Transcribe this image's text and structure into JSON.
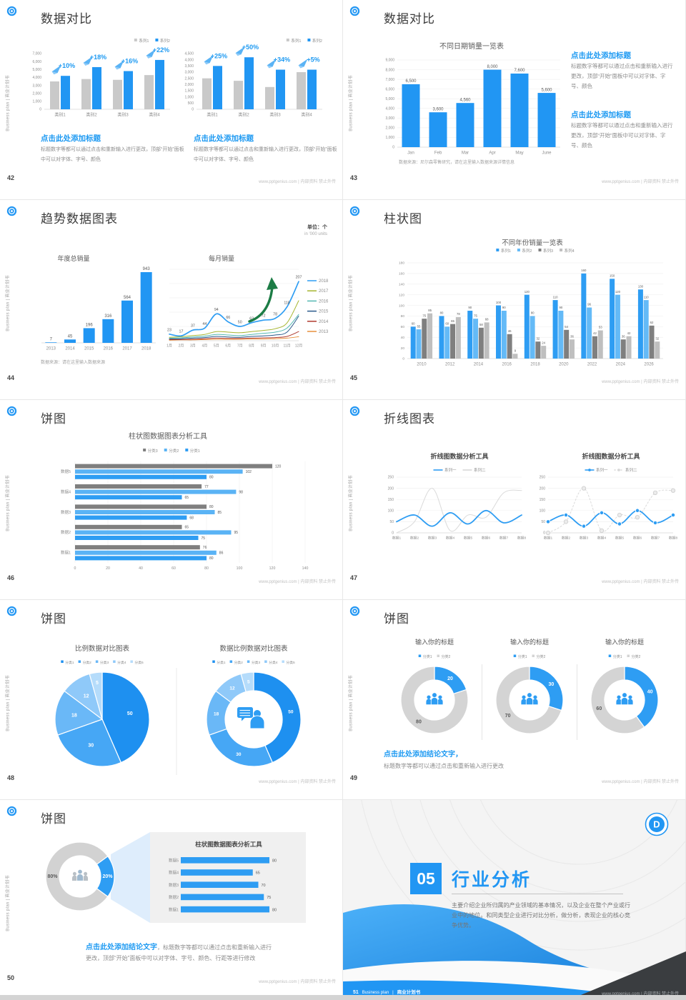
{
  "page": {
    "footer_note": "www.pptgenius.com | 内部资料 禁止外传",
    "side_label": "Business plan | 商业计划书",
    "accent_blue": "#2196f3"
  },
  "slides": {
    "s42": {
      "number": "42",
      "title": "数据对比",
      "left_block": {
        "heading": "点击此处添加标题",
        "body": "标题数字等都可以通过点击和重新输入进行更改，顶部“开始”面板中可以对字体、字号、颜色"
      },
      "right_block": {
        "heading": "点击此处添加标题",
        "body": "标题数字等都可以通过点击和重新输入进行更改，顶部“开始”面板中可以对字体、字号、颜色"
      }
    },
    "s43": {
      "number": "43",
      "title": "数据对比",
      "source": "数据来源：尼尔森零售研究，请在这里输入数据来源详情信息",
      "block1": {
        "heading": "点击此处添加标题",
        "body": "标题数字等都可以通过点击和重新输入进行更改，顶部“开始”面板中可以对字体、字号、颜色"
      },
      "block2": {
        "heading": "点击此处添加标题",
        "body": "标题数字等都可以通过点击和重新输入进行更改，顶部“开始”面板中可以对字体、字号、颜色"
      }
    },
    "s44": {
      "number": "44",
      "title": "趋势数据图表",
      "unit": "单位：个",
      "unit_sub": "in '000 units",
      "source": "数据来源：请在这里输入数据来源"
    },
    "s45": {
      "number": "45",
      "title": "柱状图"
    },
    "s46": {
      "number": "46",
      "title": "饼图"
    },
    "s47": {
      "number": "47",
      "title": "折线图表"
    },
    "s48": {
      "number": "48",
      "title": "饼图"
    },
    "s49": {
      "number": "49",
      "title": "饼图",
      "conclusion_heading": "点击此处添加结论文字，",
      "conclusion_body": "标题数字等都可以通过点击和重新输入进行更改"
    },
    "s50": {
      "number": "50",
      "title": "饼图",
      "conclusion_heading": "点击此处添加结论文字",
      "conclusion_body_inline": "，标题数字等都可以通过点击和重新输入进行",
      "conclusion_body_line2": "更改，顶部“开始”面板中可以对字体、字号、颜色、行距等进行修改"
    },
    "s51": {
      "number": "51",
      "section_number": "05",
      "section_title": "行业分析",
      "body": "主要介绍企业所归属的产业领域的基本情况，以及企业在整个产业或行业中的地位。和同类型企业进行对比分析，做分析，表现企业的核心竞争优势。",
      "footer_en": "Business plan",
      "footer_cn": "商业计划书"
    }
  },
  "chart_data": [
    {
      "id": "s42_left",
      "type": "bar",
      "categories": [
        "类别1",
        "类别2",
        "类别3",
        "类别4"
      ],
      "series": [
        {
          "name": "系列1",
          "color": "#c9c9c9",
          "values": [
            3500,
            3800,
            3700,
            4300
          ]
        },
        {
          "name": "系列2",
          "color": "#2196f3",
          "values": [
            4200,
            5300,
            4800,
            6200
          ]
        }
      ],
      "pct_labels": [
        "+10%",
        "+18%",
        "+16%",
        "+22%"
      ],
      "ylim": [
        0,
        7000
      ],
      "ytick": 1000
    },
    {
      "id": "s42_right",
      "type": "bar",
      "categories": [
        "类别1",
        "类别2",
        "类别3",
        "类别4"
      ],
      "series": [
        {
          "name": "系列1",
          "color": "#c9c9c9",
          "values": [
            2500,
            2300,
            1800,
            3000
          ]
        },
        {
          "name": "系列2",
          "color": "#2196f3",
          "values": [
            3500,
            4200,
            3200,
            3200
          ]
        }
      ],
      "pct_labels": [
        "+25%",
        "+50%",
        "+34%",
        "+5%"
      ],
      "ylim": [
        0,
        4500
      ],
      "ytick": 500
    },
    {
      "id": "s43_bar",
      "type": "bar",
      "title": "不同日期销量一览表",
      "categories": [
        "Jan",
        "Feb",
        "Mar",
        "Apr",
        "May",
        "June"
      ],
      "series": [
        {
          "name": "销量",
          "color": "#2196f3",
          "values": [
            6500,
            3600,
            4560,
            8000,
            7600,
            5600
          ]
        }
      ],
      "value_labels": [
        "6,500",
        "3,600",
        "4,560",
        "8,000",
        "7,600",
        "5,600"
      ],
      "ylim": [
        0,
        9000
      ],
      "ytick": 1000
    },
    {
      "id": "s44_annual",
      "type": "bar",
      "title": "年度总销量",
      "categories": [
        "2013",
        "2014",
        "2015",
        "2016",
        "2017",
        "2018"
      ],
      "color": "#2196f3",
      "values": [
        7,
        45,
        196,
        316,
        564,
        943
      ],
      "ylim": [
        0,
        1000
      ]
    },
    {
      "id": "s44_monthly",
      "type": "line",
      "title": "每月销量",
      "x": [
        "1月",
        "2月",
        "3月",
        "4月",
        "5月",
        "6月",
        "7月",
        "8月",
        "9月",
        "10月",
        "11月",
        "12月"
      ],
      "ylim": [
        0,
        250
      ],
      "ytick": 50,
      "series": [
        {
          "name": "2018",
          "color": "#2e9df3",
          "show_labels": true,
          "values": [
            23,
            17,
            37,
            44,
            94,
            66,
            50,
            63,
            72,
            78,
            118,
            207
          ]
        },
        {
          "name": "2017",
          "color": "#a6b52f",
          "values": [
            12,
            14,
            18,
            22,
            32,
            30,
            28,
            32,
            36,
            42,
            62,
            140
          ]
        },
        {
          "name": "2016",
          "color": "#54b8b2",
          "values": [
            9,
            10,
            13,
            16,
            22,
            20,
            18,
            22,
            26,
            30,
            44,
            92
          ]
        },
        {
          "name": "2015",
          "color": "#2a5a8c",
          "values": [
            6,
            7,
            9,
            11,
            15,
            13,
            12,
            15,
            17,
            20,
            30,
            86
          ]
        },
        {
          "name": "2014",
          "color": "#b03a2e",
          "values": [
            4,
            4,
            5,
            7,
            9,
            8,
            8,
            9,
            10,
            11,
            15,
            32
          ]
        },
        {
          "name": "2013",
          "color": "#e78f3c",
          "values": [
            2,
            3,
            3,
            4,
            5,
            5,
            5,
            6,
            6,
            7,
            9,
            14
          ]
        }
      ]
    },
    {
      "id": "s45_grouped",
      "type": "bar",
      "title": "不同年份销量一览表",
      "categories": [
        "2010",
        "2012",
        "2014",
        "2016",
        "2018",
        "2020",
        "2022",
        "2024",
        "2026"
      ],
      "ylim": [
        0,
        180
      ],
      "ytick": 20,
      "series": [
        {
          "name": "系列1",
          "color": "#2e9df3",
          "values": [
            60,
            80,
            90,
            100,
            120,
            110,
            160,
            150,
            130
          ]
        },
        {
          "name": "系列2",
          "color": "#64baf7",
          "values": [
            55,
            60,
            75,
            90,
            80,
            90,
            96,
            120,
            110
          ]
        },
        {
          "name": "系列3",
          "color": "#7f7f7f",
          "values": [
            75,
            65,
            58,
            46,
            32,
            54,
            42,
            36,
            62
          ]
        },
        {
          "name": "系列4",
          "color": "#bfbfbf",
          "values": [
            85,
            78,
            68,
            9,
            24,
            36,
            53,
            42,
            32
          ]
        }
      ]
    },
    {
      "id": "s46_hbar",
      "type": "hbar",
      "title": "柱状图数据图表分析工具",
      "categories": [
        "数据5",
        "数据4",
        "数据3",
        "数据2",
        "数据1"
      ],
      "xlim": [
        0,
        140
      ],
      "xtick": 20,
      "series": [
        {
          "name": "分类3",
          "color": "#7f7f7f",
          "values": [
            120,
            77,
            80,
            65,
            76
          ]
        },
        {
          "name": "分类2",
          "color": "#5ab3f5",
          "values": [
            102,
            98,
            85,
            95,
            86
          ]
        },
        {
          "name": "分类1",
          "color": "#2e9df3",
          "values": [
            80,
            65,
            68,
            75,
            80
          ]
        }
      ]
    },
    {
      "id": "s47_left",
      "type": "line",
      "title": "折线图数据分析工具",
      "x": [
        "数据1",
        "数据2",
        "数据3",
        "数据4",
        "数据5",
        "数据6",
        "数据7",
        "数据8"
      ],
      "ylim": [
        0,
        250
      ],
      "ytick": 50,
      "series": [
        {
          "name": "系列一",
          "color": "#2e9df3",
          "values": [
            50,
            80,
            30,
            90,
            40,
            100,
            45,
            80
          ]
        },
        {
          "name": "系列二",
          "color": "#dadada",
          "values": [
            0,
            50,
            200,
            10,
            80,
            70,
            180,
            190
          ]
        }
      ]
    },
    {
      "id": "s47_right",
      "type": "line",
      "title": "折线图数据分析工具",
      "x": [
        "数据1",
        "数据2",
        "数据3",
        "数据4",
        "数据5",
        "数据6",
        "数据7",
        "数据8"
      ],
      "ylim": [
        0,
        250
      ],
      "ytick": 50,
      "series": [
        {
          "name": "系列一",
          "color": "#2e9df3",
          "values": [
            50,
            80,
            30,
            90,
            40,
            100,
            45,
            80
          ]
        },
        {
          "name": "系列二",
          "color": "#dadada",
          "values": [
            0,
            50,
            200,
            10,
            80,
            70,
            180,
            190
          ]
        }
      ]
    },
    {
      "id": "s48_pie",
      "type": "pie",
      "title": "比例数据对比图表",
      "legend": [
        "分类1",
        "分类2",
        "分类3",
        "分类4",
        "分类5"
      ],
      "values": [
        50,
        30,
        18,
        12,
        5
      ],
      "colors": [
        "#1e90f0",
        "#46a7f5",
        "#6ab8f7",
        "#8fc9f9",
        "#b5dcfb"
      ]
    },
    {
      "id": "s48_donut",
      "type": "donut",
      "title": "数据比例数据对比图表",
      "legend": [
        "分类1",
        "分类2",
        "分类3",
        "分类4",
        "分类5"
      ],
      "values": [
        50,
        30,
        18,
        12,
        5
      ],
      "colors": [
        "#1e90f0",
        "#46a7f5",
        "#6ab8f7",
        "#8fc9f9",
        "#b5dcfb"
      ]
    },
    {
      "id": "s49_donuts",
      "type": "donut",
      "titles": [
        "输入你的标题",
        "输入你的标题",
        "输入你的标题"
      ],
      "legend": [
        "分类1",
        "分类2"
      ],
      "colors": [
        "#2e9df3",
        "#d4d4d4"
      ],
      "charts": [
        {
          "values": [
            20,
            80
          ]
        },
        {
          "values": [
            30,
            70
          ]
        },
        {
          "values": [
            40,
            60
          ]
        }
      ]
    },
    {
      "id": "s50_donut",
      "type": "donut",
      "values": [
        20,
        80
      ],
      "labels": [
        "20%",
        "80%"
      ],
      "colors": [
        "#2e9df3",
        "#d2d2d2"
      ]
    },
    {
      "id": "s50_bars",
      "type": "hbar",
      "title": "柱状图数据图表分析工具",
      "categories": [
        "数据5",
        "数据4",
        "数据3",
        "数据2",
        "数据1"
      ],
      "values": [
        80,
        65,
        70,
        75,
        80
      ],
      "color": "#2e9df3",
      "xlim": [
        0,
        100
      ]
    }
  ]
}
